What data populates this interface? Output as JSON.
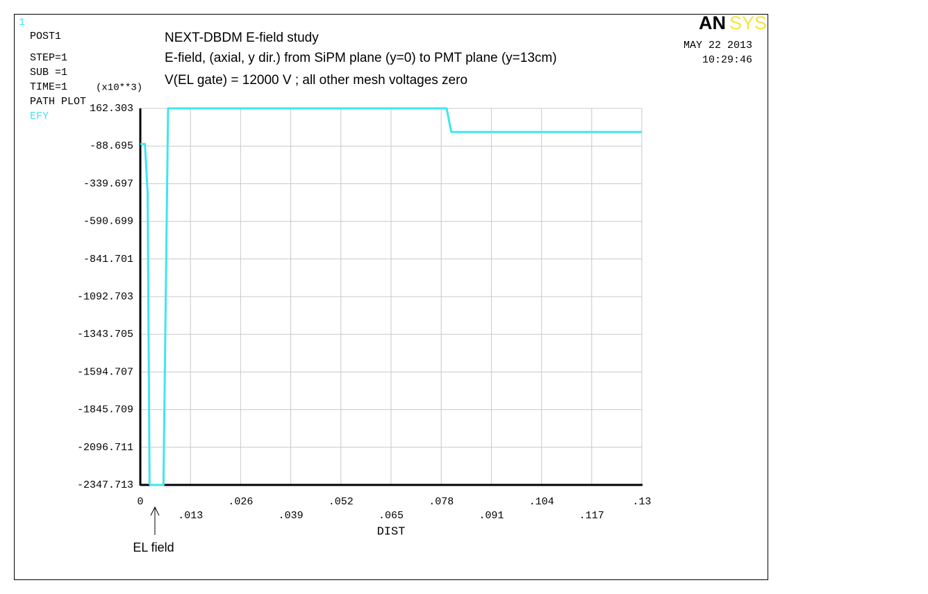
{
  "chart_data": {
    "type": "line",
    "window_number": "1",
    "info": [
      "POST1",
      "STEP=1",
      "SUB =1",
      "TIME=1",
      "PATH PLOT"
    ],
    "title": "NEXT-DBDM E-field study",
    "subtitles": [
      "E-field, (axial, y dir.) from SiPM plane (y=0) to PMT plane (y=13cm)",
      "V(EL gate) = 12000 V ; all other mesh voltages zero"
    ],
    "logo": {
      "left": "AN",
      "right": "SYS"
    },
    "date": "MAY 22 2013",
    "time": "10:29:46",
    "y_multiplier": "(x10**3)",
    "xlabel": "DIST",
    "annotation": "EL field",
    "grid": true,
    "x": [
      0,
      0.0012,
      0.0019,
      0.0024,
      0.0026,
      0.006,
      0.0064,
      0.0072,
      0.0794,
      0.0806,
      0.13
    ],
    "series": [
      {
        "name": "EFY",
        "color": "#3ee6f0",
        "values": [
          -75,
          -75,
          -400,
          -2340,
          -2347.713,
          -2347.713,
          -1500,
          162.303,
          162.303,
          5,
          5
        ]
      }
    ],
    "xlim": [
      0,
      0.13
    ],
    "xticks": [
      0,
      {
        "value": 0.013,
        "label": ".013"
      },
      {
        "value": 0.026,
        "label": ".026"
      },
      {
        "value": 0.039,
        "label": ".039"
      },
      {
        "value": 0.052,
        "label": ".052"
      },
      {
        "value": 0.065,
        "label": ".065"
      },
      {
        "value": 0.078,
        "label": ".078"
      },
      {
        "value": 0.091,
        "label": ".091"
      },
      {
        "value": 0.104,
        "label": ".104"
      },
      {
        "value": 0.117,
        "label": ".117"
      },
      {
        "value": 0.13,
        "label": ".13"
      }
    ],
    "ylim": [
      -2347.713,
      162.303
    ],
    "yticks": [
      162.303,
      -88.695,
      -339.697,
      -590.699,
      -841.701,
      -1092.703,
      -1343.705,
      -1594.707,
      -1845.709,
      -2096.711,
      -2347.713
    ]
  }
}
